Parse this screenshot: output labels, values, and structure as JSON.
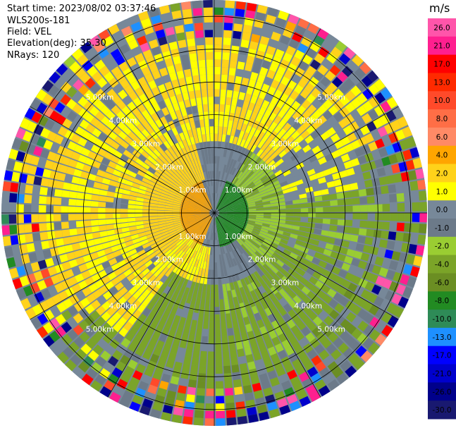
{
  "header": {
    "start_time": "Start time: 2023/08/02 03:37:46",
    "device": "WLS200s-181",
    "field": "Field: VEL",
    "elevation": "Elevation(deg): 35.30",
    "nrays": "NRays: 120"
  },
  "chart_data": {
    "type": "heatmap",
    "subtype": "polar-ppi",
    "field": "VEL",
    "units": "m/s",
    "n_rays": 120,
    "n_gates": 28,
    "max_range_km": 6.5,
    "range_rings_km": [
      1,
      2,
      3,
      4,
      5,
      6
    ],
    "range_labels": [
      "1.00km",
      "2.00km",
      "3.00km",
      "4.00km",
      "5.00km"
    ],
    "colorbar": {
      "unit_label": "m/s",
      "ticks": [
        "26.0",
        "21.0",
        "17.0",
        "13.0",
        "10.0",
        "8.0",
        "6.0",
        "4.0",
        "2.0",
        "1.0",
        "0.0",
        "-1.0",
        "-2.0",
        "-4.0",
        "-6.0",
        "-8.0",
        "-10.0",
        "-13.0",
        "-17.0",
        "-21.0",
        "-26.0",
        "-30.0"
      ],
      "bins": [
        {
          "min": 26,
          "max": 30,
          "color": "#ff55aa"
        },
        {
          "min": 21,
          "max": 26,
          "color": "#ff1f8f"
        },
        {
          "min": 17,
          "max": 21,
          "color": "#ff0000"
        },
        {
          "min": 13,
          "max": 17,
          "color": "#ff2a00"
        },
        {
          "min": 10,
          "max": 13,
          "color": "#ff4a2a"
        },
        {
          "min": 8,
          "max": 10,
          "color": "#ff6e46"
        },
        {
          "min": 6,
          "max": 8,
          "color": "#ff8a66"
        },
        {
          "min": 4,
          "max": 6,
          "color": "#ffa500"
        },
        {
          "min": 2,
          "max": 4,
          "color": "#ffd21a"
        },
        {
          "min": 1,
          "max": 2,
          "color": "#ffff00"
        },
        {
          "min": 0,
          "max": 1,
          "color": "#778899"
        },
        {
          "min": -1,
          "max": 0,
          "color": "#6c7a89"
        },
        {
          "min": -2,
          "max": -1,
          "color": "#9acd32"
        },
        {
          "min": -4,
          "max": -2,
          "color": "#7ba428"
        },
        {
          "min": -6,
          "max": -4,
          "color": "#6b8e23"
        },
        {
          "min": -8,
          "max": -6,
          "color": "#228b22"
        },
        {
          "min": -10,
          "max": -8,
          "color": "#2e8b57"
        },
        {
          "min": -13,
          "max": -10,
          "color": "#1e90ff"
        },
        {
          "min": -17,
          "max": -13,
          "color": "#0000ff"
        },
        {
          "min": -21,
          "max": -17,
          "color": "#0000cd"
        },
        {
          "min": -26,
          "max": -21,
          "color": "#00008b"
        },
        {
          "min": -30,
          "max": -26,
          "color": "#191970"
        }
      ]
    }
  }
}
